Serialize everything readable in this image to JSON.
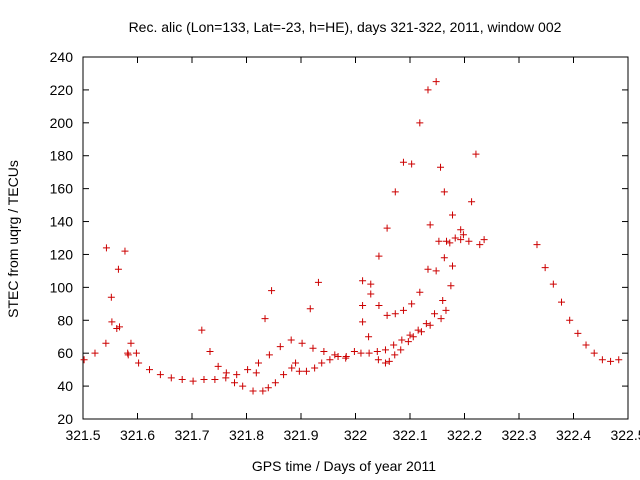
{
  "chart_data": {
    "type": "scatter",
    "title": "Rec. alic (Lon=133, Lat=-23, h=HE), days 321-322, 2011, window 002",
    "xlabel": "GPS time / Days of year 2011",
    "ylabel": "STEC from uqrg / TECUs",
    "xlim": [
      321.5,
      322.5
    ],
    "ylim": [
      20,
      240
    ],
    "xticks": [
      321.5,
      321.6,
      321.7,
      321.8,
      321.9,
      322,
      322.1,
      322.2,
      322.3,
      322.4,
      322.5
    ],
    "xtick_labels": [
      "321.5",
      "321.6",
      "321.7",
      "321.8",
      "321.9",
      "322",
      "322.1",
      "322.2",
      "322.3",
      "322.4",
      "322.5"
    ],
    "yticks": [
      20,
      40,
      60,
      80,
      100,
      120,
      140,
      160,
      180,
      200,
      220,
      240
    ],
    "ytick_labels": [
      "20",
      "40",
      "60",
      "80",
      "100",
      "120",
      "140",
      "160",
      "180",
      "200",
      "220",
      "240"
    ],
    "marker": "+",
    "grid": false,
    "legend": "none",
    "colors": {
      "points": "#cc0000",
      "axes": "#000000"
    },
    "series": [
      {
        "x": [
          321.502,
          321.522,
          321.542,
          321.562,
          321.582,
          321.602,
          321.622,
          321.642,
          321.662,
          321.682,
          321.702,
          321.722,
          321.742,
          321.762,
          321.782,
          321.802,
          321.822,
          321.842,
          321.862,
          321.882,
          321.902,
          321.922,
          321.942,
          321.962,
          321.982,
          321.543,
          321.553,
          321.565,
          321.577,
          321.588,
          321.598,
          321.552,
          321.567,
          321.583,
          321.718,
          321.733,
          321.748,
          321.763,
          321.778,
          321.793,
          321.812,
          321.83,
          321.84,
          321.853,
          321.868,
          321.883,
          321.897,
          321.91,
          321.925,
          321.938,
          321.953,
          321.968,
          321.983,
          321.998,
          321.818,
          321.834,
          321.846,
          321.89,
          321.917,
          321.932,
          322.013,
          322.028,
          322.043,
          322.058,
          322.073,
          322.088,
          322.103,
          322.118,
          322.133,
          322.148,
          322.163,
          322.178,
          322.013,
          322.028,
          322.043,
          322.058,
          322.073,
          322.088,
          322.103,
          322.118,
          322.133,
          322.148,
          322.163,
          322.178,
          322.01,
          322.025,
          322.04,
          322.055,
          322.07,
          322.085,
          322.1,
          322.115,
          322.13,
          322.145,
          322.16,
          322.175,
          322.013,
          322.024,
          322.042,
          322.055,
          322.062,
          322.072,
          322.083,
          322.097,
          322.106,
          322.121,
          322.137,
          322.157,
          322.166,
          322.137,
          322.156,
          322.167,
          322.183,
          322.153,
          322.173,
          322.193,
          322.198,
          322.213,
          322.228,
          322.193,
          322.208,
          322.221,
          322.236,
          322.333,
          322.348,
          322.363,
          322.378,
          322.393,
          322.408,
          322.423,
          322.438,
          322.453,
          322.468,
          322.483
        ],
        "y": [
          56,
          60,
          66,
          75,
          60,
          54,
          50,
          47,
          45,
          44,
          43,
          44,
          44,
          45,
          47,
          50,
          54,
          59,
          64,
          68,
          66,
          63,
          61,
          59,
          57,
          124,
          79,
          111,
          122,
          66,
          60,
          94,
          76,
          59,
          74,
          61,
          52,
          48,
          42,
          40,
          37,
          37,
          39,
          42,
          47,
          51,
          49,
          49,
          51,
          54,
          56,
          58,
          58,
          61,
          48,
          81,
          98,
          54,
          87,
          103,
          104,
          102,
          119,
          136,
          158,
          176,
          175,
          200,
          220,
          225,
          158,
          144,
          89,
          96,
          89,
          83,
          84,
          86,
          90,
          97,
          111,
          110,
          118,
          113,
          60,
          60,
          61,
          62,
          65,
          68,
          71,
          74,
          78,
          84,
          92,
          101,
          79,
          70,
          56,
          54,
          55,
          59,
          62,
          67,
          70,
          73,
          77,
          81,
          86,
          138,
          173,
          128,
          130,
          128,
          127,
          135,
          132,
          152,
          126,
          129,
          128,
          181,
          129,
          126,
          112,
          102,
          91,
          80,
          72,
          65,
          60,
          56,
          55,
          56
        ]
      }
    ]
  }
}
